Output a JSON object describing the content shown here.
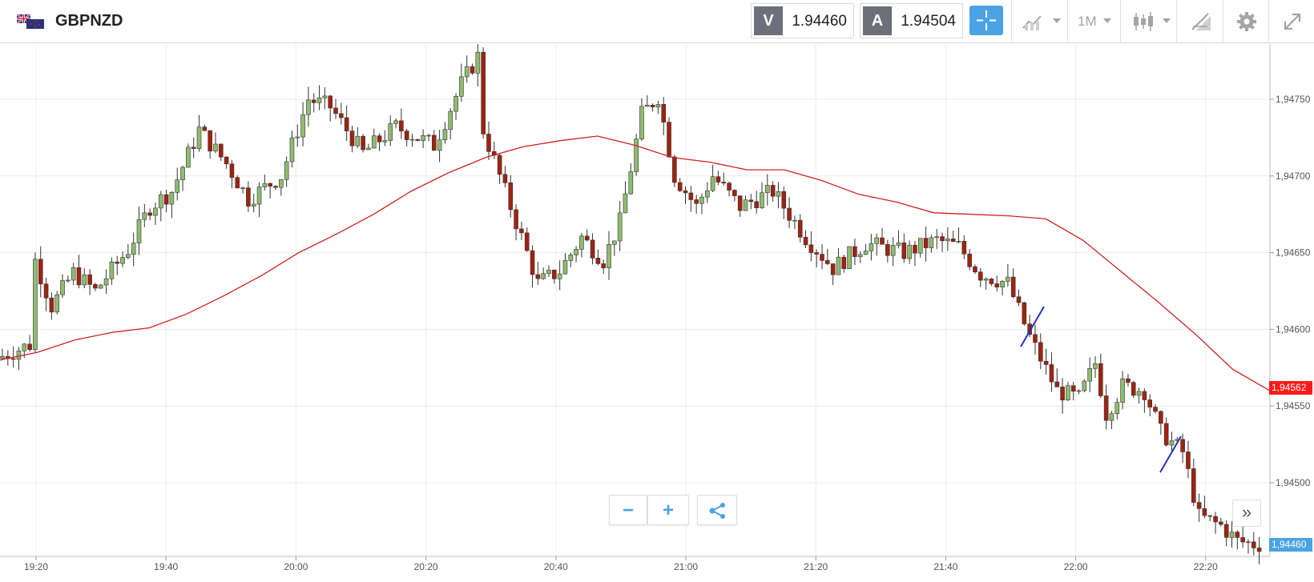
{
  "header": {
    "symbol": "GBPNZD",
    "sell_tag": "V",
    "sell_price": "1.94460",
    "buy_tag": "A",
    "buy_price": "1.94504",
    "timeframe": "1M",
    "icons": [
      "flag-icon",
      "crosshair-icon",
      "chart-type-icon",
      "candles-icon",
      "drawing-icon",
      "gear-icon",
      "fullscreen-icon"
    ]
  },
  "controls": {
    "zoom_out": "−",
    "zoom_in": "+",
    "share_icon": "share-icon",
    "expand": "»"
  },
  "chart_data": {
    "type": "candlestick",
    "symbol": "GBPNZD",
    "timeframe": "1M",
    "x_ticks": [
      "19:20",
      "19:40",
      "20:00",
      "20:20",
      "20:40",
      "21:00",
      "21:20",
      "21:40",
      "22:00",
      "22:20"
    ],
    "y_ticks": [
      "1,94750",
      "1,94700",
      "1,94650",
      "1,94600",
      "1,94550",
      "1,94500"
    ],
    "ylim": [
      1.94452,
      1.94786
    ],
    "price_labels": [
      {
        "text": "1,94562",
        "value": 1.94562,
        "color": "#ff1a1a"
      },
      {
        "text": "1,94460",
        "value": 1.9446,
        "color": "#4ba3e3"
      }
    ],
    "moving_average": {
      "color": "#d42020",
      "values": [
        1.9458,
        1.94585,
        1.94593,
        1.94598,
        1.94601,
        1.9461,
        1.94622,
        1.94635,
        1.9465,
        1.94662,
        1.94675,
        1.9469,
        1.94702,
        1.94712,
        1.94719,
        1.94723,
        1.94726,
        1.9472,
        1.94712,
        1.94709,
        1.94704,
        1.94704,
        1.94697,
        1.94688,
        1.94683,
        1.94676,
        1.94675,
        1.94674,
        1.94672,
        1.94658,
        1.94638,
        1.94618,
        1.94597,
        1.94574,
        1.9456
      ]
    },
    "colors": {
      "up": "#8fbc70",
      "down": "#a0230f",
      "wick": "#333333",
      "grid": "#ececec"
    },
    "candles_ohlc": []
  }
}
